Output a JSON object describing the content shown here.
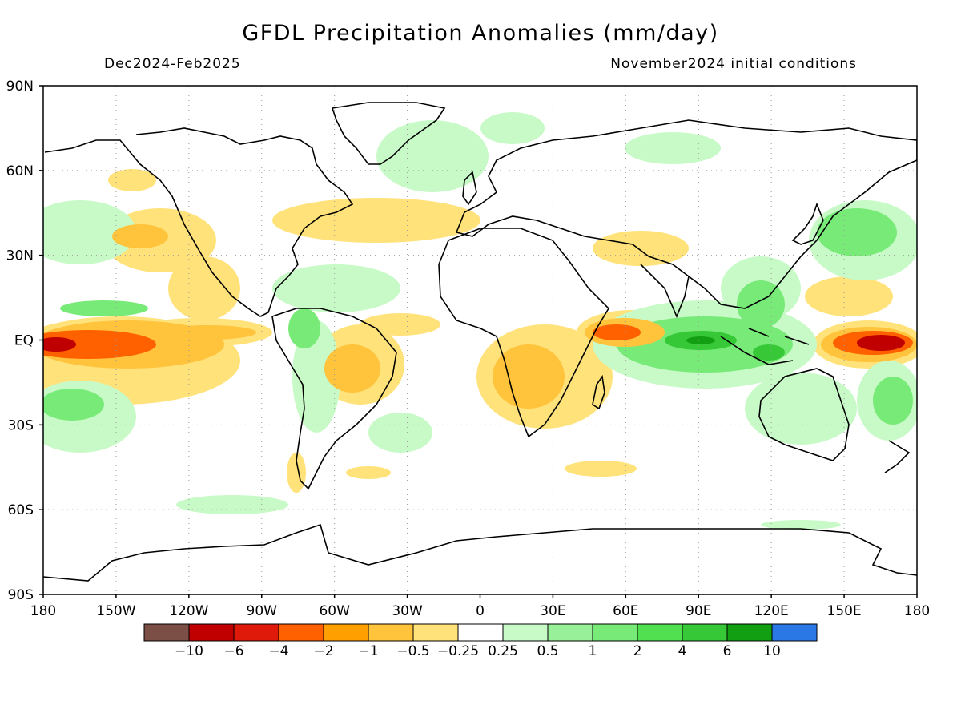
{
  "title": "GFDL Precipitation Anomalies (mm/day)",
  "period": "Dec2024-Feb2025",
  "init": "November2024 initial conditions",
  "lat_ticks": [
    "90N",
    "60N",
    "30N",
    "EQ",
    "30S",
    "60S",
    "90S"
  ],
  "lat_values": [
    90,
    60,
    30,
    0,
    -30,
    -60,
    -90
  ],
  "lon_ticks": [
    "180",
    "150W",
    "120W",
    "90W",
    "60W",
    "30W",
    "0",
    "30E",
    "60E",
    "90E",
    "120E",
    "150E",
    "180"
  ],
  "lon_values": [
    -180,
    -150,
    -120,
    -90,
    -60,
    -30,
    0,
    30,
    60,
    90,
    120,
    150,
    180
  ],
  "colorbar": {
    "colors": [
      "#7b4f45",
      "#c00000",
      "#e01a0a",
      "#ff6000",
      "#ff9f00",
      "#ffc33c",
      "#ffe27a",
      "#ffffff",
      "#c8fac8",
      "#98f098",
      "#78ea78",
      "#50e050",
      "#36c836",
      "#12a012",
      "#2a78e6"
    ],
    "labels": [
      "−10",
      "−6",
      "−4",
      "−2",
      "−1",
      "−0.5",
      "−0.25",
      "0.25",
      "0.5",
      "1",
      "2",
      "4",
      "6",
      "10"
    ]
  },
  "colors": {
    "dry_strong": "#c00000",
    "dry_moderate": "#ff6000",
    "dry_light": "#ff9f00",
    "dry_weak": "#ffc33c",
    "wet_weak": "#c8fac8",
    "wet_light": "#78ea78",
    "wet_moderate": "#36c836",
    "wet_strong": "#12a012"
  }
}
